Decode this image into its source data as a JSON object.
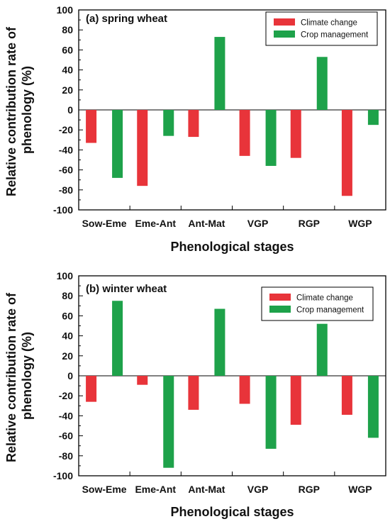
{
  "chart_data": [
    {
      "type": "bar",
      "title": "(a) spring wheat",
      "xlabel": "Phenological stages",
      "ylabel": "Relative contribution rate of phenology  (%)",
      "ylim": [
        -100,
        100
      ],
      "yticks": [
        "100",
        "80",
        "60",
        "40",
        "20",
        "0",
        "-20",
        "-40",
        "-60",
        "-80",
        "-100"
      ],
      "categories": [
        "Sow-Eme",
        "Eme-Ant",
        "Ant-Mat",
        "VGP",
        "RGP",
        "WGP"
      ],
      "series": [
        {
          "name": "Climate change",
          "color": "#e8343a",
          "values": [
            -33,
            -76,
            -27,
            -46,
            -48,
            -86
          ]
        },
        {
          "name": "Crop management",
          "color": "#1ea24a",
          "values": [
            -68,
            -26,
            73,
            -56,
            53,
            -15
          ]
        }
      ],
      "legend_position": "top-right",
      "grid": false
    },
    {
      "type": "bar",
      "title": "(b) winter wheat",
      "xlabel": "Phenological stages",
      "ylabel": "Relative contribution rate of phenology  (%)",
      "ylim": [
        -100,
        100
      ],
      "yticks": [
        "100",
        "80",
        "60",
        "40",
        "20",
        "0",
        "-20",
        "-40",
        "-60",
        "-80",
        "-100"
      ],
      "categories": [
        "Sow-Eme",
        "Eme-Ant",
        "Ant-Mat",
        "VGP",
        "RGP",
        "WGP"
      ],
      "series": [
        {
          "name": "Climate change",
          "color": "#e8343a",
          "values": [
            -26,
            -9,
            -34,
            -28,
            -49,
            -39
          ]
        },
        {
          "name": "Crop management",
          "color": "#1ea24a",
          "values": [
            75,
            -92,
            67,
            -73,
            52,
            -62
          ]
        }
      ],
      "legend_position": "top-right",
      "grid": false
    }
  ]
}
